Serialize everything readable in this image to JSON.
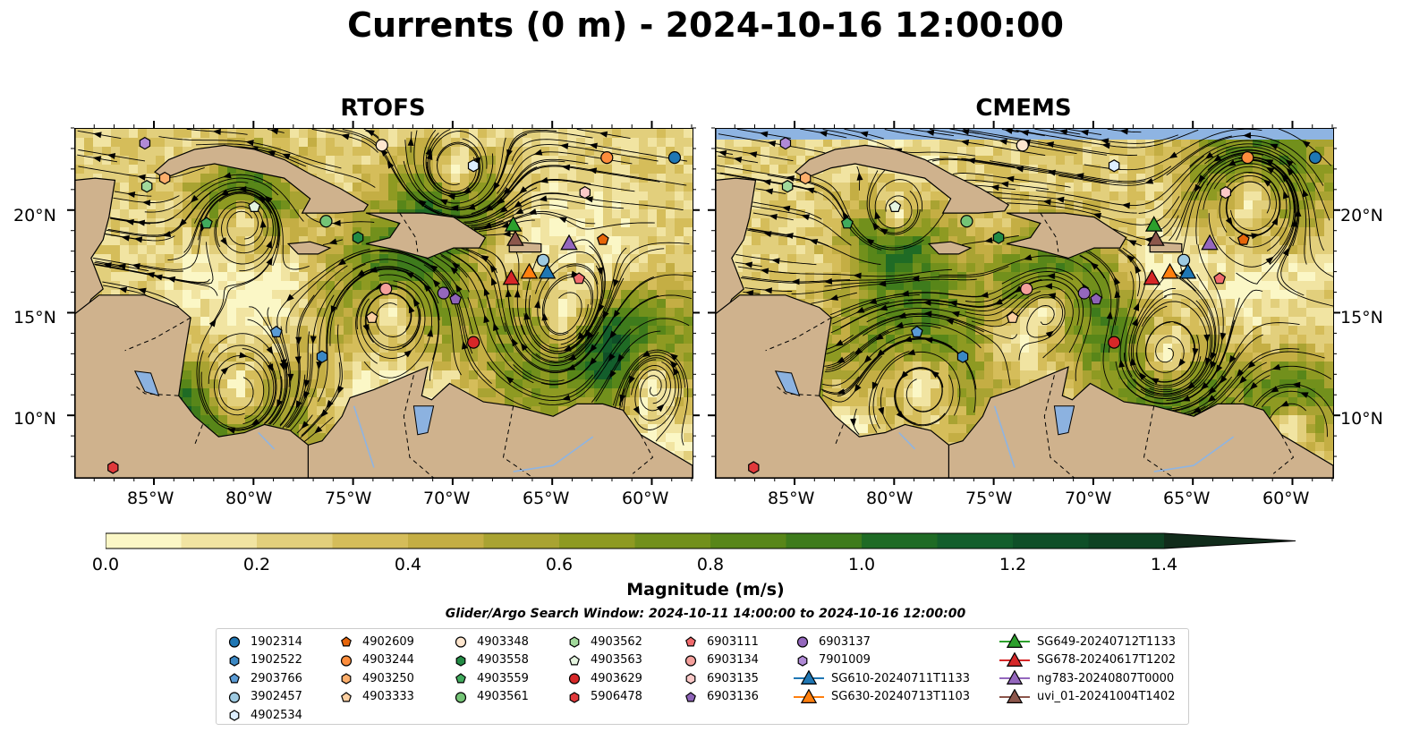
{
  "title": "Currents (0 m) - 2024-10-16 12:00:00",
  "panels": [
    {
      "title": "RTOFS"
    },
    {
      "title": "CMEMS"
    }
  ],
  "lat_ticks": [
    "20°N",
    "15°N",
    "10°N"
  ],
  "lon_ticks": [
    "85°W",
    "80°W",
    "75°W",
    "70°W",
    "65°W",
    "60°W"
  ],
  "colorbar": {
    "label": "Magnitude (m/s)",
    "ticks": [
      "0.0",
      "0.2",
      "0.4",
      "0.6",
      "0.8",
      "1.0",
      "1.2",
      "1.4"
    ],
    "colors": [
      "#fbf7c6",
      "#f1e4a2",
      "#e2cf7c",
      "#d5bd5a",
      "#c4ae44",
      "#a9a332",
      "#8e9a22",
      "#72901c",
      "#588619",
      "#3e7b1c",
      "#1f6b25",
      "#135e2c",
      "#0f4f28",
      "#0e4323",
      "#10371f",
      "#112c1b"
    ]
  },
  "search_window": "Glider/Argo Search Window: 2024-10-11 14:00:00 to 2024-10-16 12:00:00",
  "colors": {
    "land": "#cfb28d",
    "lake": "#8cb2e0",
    "ocean_low": "#f4ecb0"
  },
  "legend": [
    {
      "label": "1902314",
      "marker": "circle",
      "color": "#1f77b4"
    },
    {
      "label": "1902522",
      "marker": "hexagon",
      "color": "#3b88c4"
    },
    {
      "label": "2903766",
      "marker": "pentagon",
      "color": "#5a9bd5"
    },
    {
      "label": "3902457",
      "marker": "circle",
      "color": "#9ecae1"
    },
    {
      "label": "4902534",
      "marker": "hexagon",
      "color": "#ddeeff"
    },
    {
      "label": "4902609",
      "marker": "pentagon",
      "color": "#e6650a"
    },
    {
      "label": "4903244",
      "marker": "circle",
      "color": "#fd8d3c"
    },
    {
      "label": "4903250",
      "marker": "hexagon",
      "color": "#fdae6b"
    },
    {
      "label": "4903333",
      "marker": "pentagon",
      "color": "#fdd0a2"
    },
    {
      "label": "4903348",
      "marker": "circle",
      "color": "#fee6ce"
    },
    {
      "label": "4903558",
      "marker": "hexagon",
      "color": "#238b45"
    },
    {
      "label": "4903559",
      "marker": "pentagon",
      "color": "#41ab5d"
    },
    {
      "label": "4903561",
      "marker": "circle",
      "color": "#74c476"
    },
    {
      "label": "4903562",
      "marker": "hexagon",
      "color": "#a1d99b"
    },
    {
      "label": "4903563",
      "marker": "pentagon",
      "color": "#e5f5e0"
    },
    {
      "label": "4903629",
      "marker": "circle",
      "color": "#d62728"
    },
    {
      "label": "5906478",
      "marker": "hexagon",
      "color": "#e0393b"
    },
    {
      "label": "6903111",
      "marker": "pentagon",
      "color": "#f06a6c"
    },
    {
      "label": "6903134",
      "marker": "circle",
      "color": "#f4a09c"
    },
    {
      "label": "6903135",
      "marker": "hexagon",
      "color": "#fbc9c8"
    },
    {
      "label": "6903136",
      "marker": "pentagon",
      "color": "#8e63b8"
    },
    {
      "label": "6903137",
      "marker": "circle",
      "color": "#9467bd"
    },
    {
      "label": "7901009",
      "marker": "hexagon",
      "color": "#b08ad6"
    },
    {
      "label": "SG610-20240711T1133",
      "marker": "triangle-line",
      "color": "#1f77b4"
    },
    {
      "label": "SG630-20240713T1103",
      "marker": "triangle-line",
      "color": "#ff7f0e"
    },
    {
      "label": "SG649-20240712T1133",
      "marker": "triangle-line",
      "color": "#2ca02c"
    },
    {
      "label": "SG678-20240617T1202",
      "marker": "triangle-line",
      "color": "#d62728"
    },
    {
      "label": "ng783-20240807T0000",
      "marker": "triangle-line",
      "color": "#9467bd"
    },
    {
      "label": "uvi_01-20241004T1402",
      "marker": "triangle-line",
      "color": "#8c564b"
    }
  ],
  "chart_data": {
    "type": "map-streamplot",
    "x_range_lon": [
      -89,
      -58
    ],
    "y_range_lat": [
      7,
      24
    ],
    "floats": [
      {
        "id": "1902314",
        "lon": -58.9,
        "lat": 22.6
      },
      {
        "id": "1902522",
        "lon": -76.6,
        "lat": 12.9
      },
      {
        "id": "2903766",
        "lon": -78.9,
        "lat": 14.1
      },
      {
        "id": "3902457",
        "lon": -65.5,
        "lat": 17.6
      },
      {
        "id": "4902534",
        "lon": -69.0,
        "lat": 22.2
      },
      {
        "id": "4902609",
        "lon": -62.5,
        "lat": 18.6
      },
      {
        "id": "4903244",
        "lon": -62.3,
        "lat": 22.6
      },
      {
        "id": "4903250",
        "lon": -84.5,
        "lat": 21.6
      },
      {
        "id": "4903333",
        "lon": -74.1,
        "lat": 14.8
      },
      {
        "id": "4903348",
        "lon": -73.6,
        "lat": 23.2
      },
      {
        "id": "4903558",
        "lon": -74.8,
        "lat": 18.7
      },
      {
        "id": "4903559",
        "lon": -82.4,
        "lat": 19.4
      },
      {
        "id": "4903561",
        "lon": -76.4,
        "lat": 19.5
      },
      {
        "id": "4903562",
        "lon": -85.4,
        "lat": 21.2
      },
      {
        "id": "4903563",
        "lon": -80.0,
        "lat": 20.2
      },
      {
        "id": "4903629",
        "lon": -69.0,
        "lat": 13.6
      },
      {
        "id": "5906478",
        "lon": -87.1,
        "lat": 7.5
      },
      {
        "id": "6903111",
        "lon": -63.7,
        "lat": 16.7
      },
      {
        "id": "6903134",
        "lon": -73.4,
        "lat": 16.2
      },
      {
        "id": "6903135",
        "lon": -63.4,
        "lat": 20.9
      },
      {
        "id": "6903136",
        "lon": -69.9,
        "lat": 15.7
      },
      {
        "id": "6903137",
        "lon": -70.5,
        "lat": 16.0
      },
      {
        "id": "7901009",
        "lon": -85.5,
        "lat": 23.3
      }
    ],
    "gliders": [
      {
        "id": "SG610-20240711T1133",
        "lon": -65.3,
        "lat": 17.0
      },
      {
        "id": "SG630-20240713T1103",
        "lon": -66.2,
        "lat": 17.0
      },
      {
        "id": "SG649-20240712T1133",
        "lon": -67.0,
        "lat": 19.3
      },
      {
        "id": "SG678-20240617T1202",
        "lon": -67.1,
        "lat": 16.7
      },
      {
        "id": "ng783-20240807T0000",
        "lon": -64.2,
        "lat": 18.4
      },
      {
        "id": "uvi_01-20241004T1402",
        "lon": -66.9,
        "lat": 18.6
      }
    ]
  }
}
